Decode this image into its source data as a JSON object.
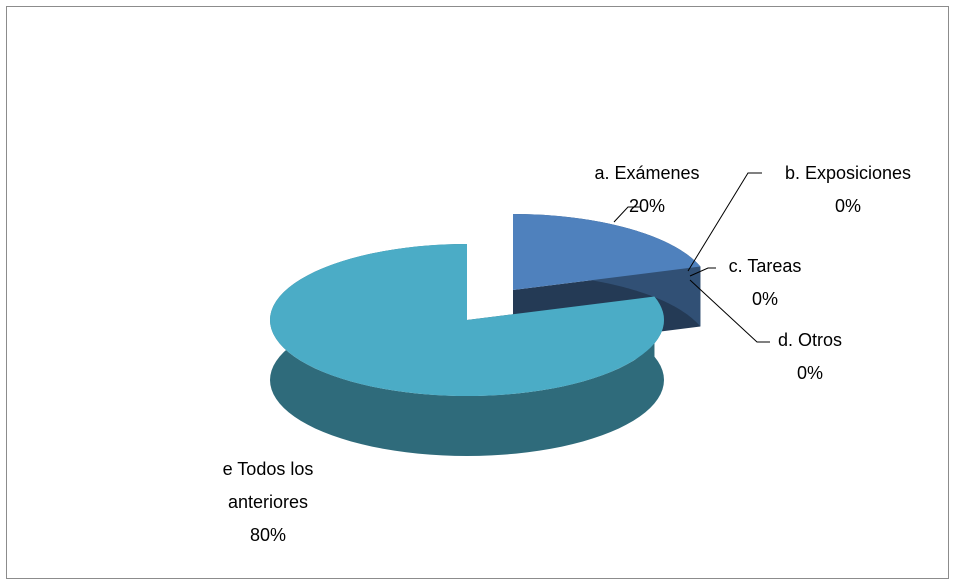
{
  "chart_data": {
    "type": "pie",
    "categories": [
      "a. Exámenes",
      "b. Exposiciones",
      "c. Tareas",
      "d. Otros",
      "e Todos los anteriores"
    ],
    "values": [
      20,
      0,
      0,
      0,
      80
    ],
    "value_labels": [
      "20%",
      "0%",
      "0%",
      "0%",
      "80%"
    ],
    "colors": [
      "#4f81bd",
      "#c0504d",
      "#9bbb59",
      "#8064a2",
      "#4bacc6"
    ]
  }
}
